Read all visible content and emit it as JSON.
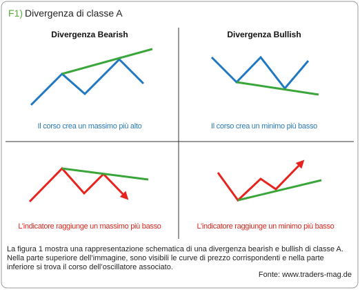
{
  "header": {
    "label": "F1)",
    "title": "Divergenza di classe A"
  },
  "panels": [
    {
      "heading": "Divergenza Bearish",
      "caption": "Il corso crea un massimo più alto"
    },
    {
      "heading": "Divergenza Bullish",
      "caption": "Il corso crea un minimo più basso"
    },
    {
      "caption": "L’indicatore raggiunge un massimo più basso"
    },
    {
      "caption": "L’indicatore raggiunge un minimo più basso"
    }
  ],
  "description": "La figura 1 mostra una rappresentazione schematica di una divergenza bearish e bullish di classe A. Nella parte superiore dell’immagine, sono visibili le curve di prezzo corrispondenti e nella parte inferiore si trova il corso dell’oscillatore associato.",
  "source": "Fonte: www.traders-mag.de"
}
